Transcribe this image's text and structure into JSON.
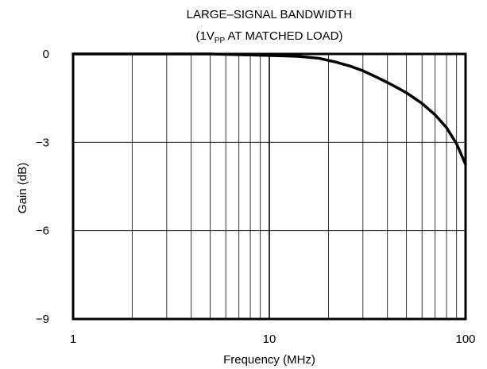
{
  "chart_data": {
    "type": "line",
    "title_line1": "LARGE–SIGNAL BANDWIDTH",
    "title_line2_prefix": "(1V",
    "title_line2_sub": "PP",
    "title_line2_suffix": " AT MATCHED LOAD)",
    "xlabel": "Frequency (MHz)",
    "ylabel": "Gain (dB)",
    "x_scale": "log",
    "xlim": [
      1,
      100
    ],
    "ylim": [
      -9,
      0
    ],
    "x_ticks": [
      1,
      10,
      100
    ],
    "x_tick_labels": [
      "1",
      "10",
      "100"
    ],
    "y_ticks": [
      0,
      -3,
      -6,
      -9
    ],
    "y_tick_labels": [
      "0",
      "−3",
      "−6",
      "−9"
    ],
    "grid": true,
    "series": [
      {
        "x": [
          1,
          5,
          10,
          14,
          18,
          22,
          26,
          30,
          35,
          40,
          45,
          50,
          60,
          70,
          80,
          90,
          100
        ],
        "y": [
          0,
          0,
          -0.05,
          -0.08,
          -0.15,
          -0.28,
          -0.42,
          -0.57,
          -0.78,
          -0.97,
          -1.15,
          -1.32,
          -1.68,
          -2.07,
          -2.5,
          -3.05,
          -3.75
        ]
      }
    ]
  }
}
